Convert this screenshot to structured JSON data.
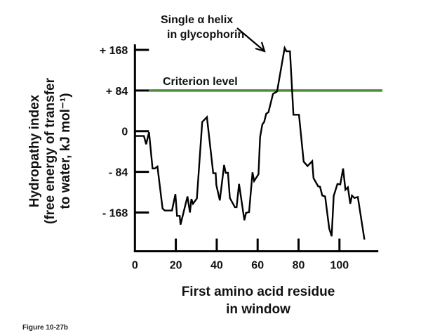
{
  "chart_data": {
    "type": "line",
    "title": "",
    "xlabel": [
      "First amino acid residue",
      "in window"
    ],
    "ylabel": [
      "Hydropathy index",
      "(free energy of transfer",
      "to water, kJ mol⁻¹)"
    ],
    "xlim": [
      0,
      119
    ],
    "ylim": [
      -248,
      175
    ],
    "x_ticks": [
      0,
      20,
      40,
      60,
      80,
      100
    ],
    "x_tick_labels": [
      "0",
      "20",
      "40",
      "60",
      "80",
      "100"
    ],
    "y_ticks": [
      168,
      84,
      0,
      -84,
      -168
    ],
    "y_tick_labels": [
      "+ 168",
      "+ 84",
      "0",
      "- 84",
      "- 168"
    ],
    "grid": false,
    "line_color": "#000000",
    "reference_line": {
      "label": "Criterion level",
      "y": 84,
      "color": "#4a8a3a"
    },
    "annotation": {
      "text": [
        "Single α helix",
        "in glycophorin"
      ],
      "points_to": {
        "x": 73,
        "y": 168
      }
    },
    "series": [
      {
        "x": [
          0.4,
          4.4,
          5.5,
          6.9,
          8.6,
          9.7,
          11,
          13.5,
          14.6,
          18.1,
          19.8,
          20.6,
          21.9,
          22.3,
          25.7,
          26.9,
          27.6,
          28.4,
          30.3,
          32.9,
          35.2,
          38.3,
          39.5,
          39.8,
          41.5,
          43.6,
          44.4,
          45.5,
          46.4,
          48.9,
          49.7,
          50.9,
          53.5,
          54.3,
          55.8,
          57.5,
          58.3,
          60.4,
          61.2,
          62.3,
          63.2,
          64.2,
          65.3,
          67.5,
          69.5,
          73.2,
          74.1,
          75.8,
          77.5,
          80.2,
          82.5,
          84.4,
          86.7,
          87.3,
          89.6,
          90.5,
          91.6,
          93,
          95,
          96.2,
          97.2,
          99,
          100.4,
          101.8,
          102.9,
          104.1,
          105.3,
          106.1,
          107.3,
          109,
          112.2
        ],
        "y": [
          -10,
          -10,
          -27,
          -2,
          -77,
          -77,
          -73,
          -160,
          -164,
          -164,
          -130,
          -175,
          -175,
          -193,
          -135,
          -168,
          -140,
          -150,
          -139,
          19,
          29,
          -87,
          -87,
          -111,
          -143,
          -70,
          -86,
          -86,
          -138,
          -157,
          -157,
          -109,
          -184,
          -169,
          -167,
          -85,
          -103,
          -89,
          -12,
          14,
          19,
          36,
          39,
          77,
          82,
          172,
          165,
          165,
          34,
          34,
          -63,
          -72,
          -62,
          -97,
          -114,
          -115,
          -133,
          -135,
          -201,
          -217,
          -134,
          -109,
          -110,
          -77,
          -121,
          -116,
          -150,
          -133,
          -138,
          -136,
          -224
        ]
      }
    ]
  },
  "caption": "Figure 10-27b"
}
